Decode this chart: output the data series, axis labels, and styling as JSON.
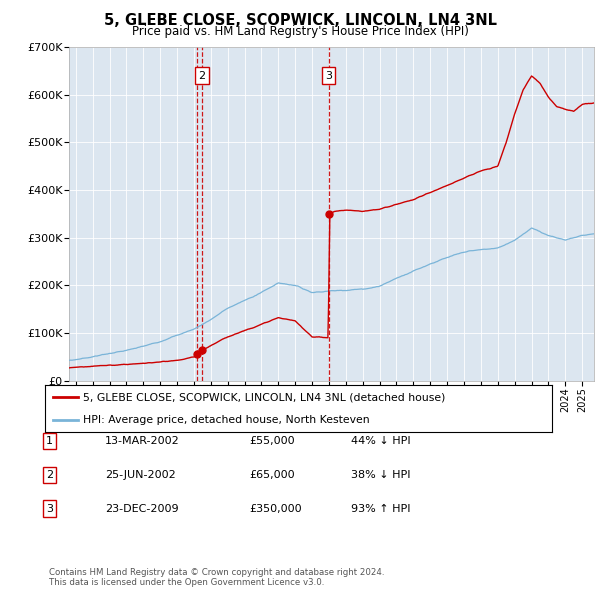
{
  "title": "5, GLEBE CLOSE, SCOPWICK, LINCOLN, LN4 3NL",
  "subtitle": "Price paid vs. HM Land Registry's House Price Index (HPI)",
  "background_color": "#ffffff",
  "plot_bg_color": "#dce6f0",
  "ylim": [
    0,
    700000
  ],
  "yticks": [
    0,
    100000,
    200000,
    300000,
    400000,
    500000,
    600000,
    700000
  ],
  "ytick_labels": [
    "£0",
    "£100K",
    "£200K",
    "£300K",
    "£400K",
    "£500K",
    "£600K",
    "£700K"
  ],
  "xlim_start": 1994.6,
  "xlim_end": 2025.7,
  "price_paid_color": "#cc0000",
  "hpi_color": "#7ab4d8",
  "vline_color": "#cc0000",
  "transactions": [
    {
      "label": "1",
      "date": 2002.19,
      "price": 55000
    },
    {
      "label": "2",
      "date": 2002.48,
      "price": 65000
    },
    {
      "label": "3",
      "date": 2009.98,
      "price": 350000
    }
  ],
  "show_box_labels": [
    "2",
    "3"
  ],
  "legend_entries": [
    "5, GLEBE CLOSE, SCOPWICK, LINCOLN, LN4 3NL (detached house)",
    "HPI: Average price, detached house, North Kesteven"
  ],
  "table_rows": [
    [
      "1",
      "13-MAR-2002",
      "£55,000",
      "44% ↓ HPI"
    ],
    [
      "2",
      "25-JUN-2002",
      "£65,000",
      "38% ↓ HPI"
    ],
    [
      "3",
      "23-DEC-2009",
      "£350,000",
      "93% ↑ HPI"
    ]
  ],
  "footnote": "Contains HM Land Registry data © Crown copyright and database right 2024.\nThis data is licensed under the Open Government Licence v3.0.",
  "hpi_key_years": [
    1994.6,
    1995,
    1996,
    1997,
    1998,
    1999,
    2000,
    2001,
    2002,
    2003,
    2004,
    2005,
    2006,
    2007,
    2008,
    2009,
    2010,
    2011,
    2012,
    2013,
    2014,
    2015,
    2016,
    2017,
    2018,
    2019,
    2020,
    2021,
    2022,
    2023,
    2024,
    2025,
    2025.7
  ],
  "hpi_key_vals": [
    42000,
    44000,
    50000,
    57000,
    63000,
    72000,
    82000,
    95000,
    108000,
    128000,
    152000,
    168000,
    185000,
    205000,
    200000,
    185000,
    188000,
    190000,
    192000,
    198000,
    215000,
    230000,
    245000,
    258000,
    270000,
    275000,
    278000,
    295000,
    320000,
    305000,
    295000,
    305000,
    308000
  ],
  "pp_key_years": [
    1994.6,
    1995,
    1997,
    1999,
    2001,
    2002.1,
    2002.3,
    2002.5,
    2002.55,
    2004,
    2006,
    2007,
    2008,
    2009.0,
    2009.95,
    2010.05,
    2010.3,
    2011,
    2012,
    2013,
    2014,
    2015,
    2016,
    2017,
    2018,
    2019,
    2020,
    2020.5,
    2021,
    2021.5,
    2022.0,
    2022.5,
    2023.0,
    2023.5,
    2024.0,
    2024.5,
    2025,
    2025.7
  ],
  "pp_key_vals": [
    27000,
    28000,
    32000,
    36000,
    42000,
    50000,
    55000,
    65000,
    65000,
    92000,
    118000,
    132000,
    125000,
    92000,
    90000,
    350000,
    355000,
    358000,
    355000,
    360000,
    370000,
    380000,
    395000,
    410000,
    425000,
    440000,
    450000,
    500000,
    560000,
    610000,
    640000,
    625000,
    595000,
    575000,
    570000,
    565000,
    580000,
    583000
  ]
}
